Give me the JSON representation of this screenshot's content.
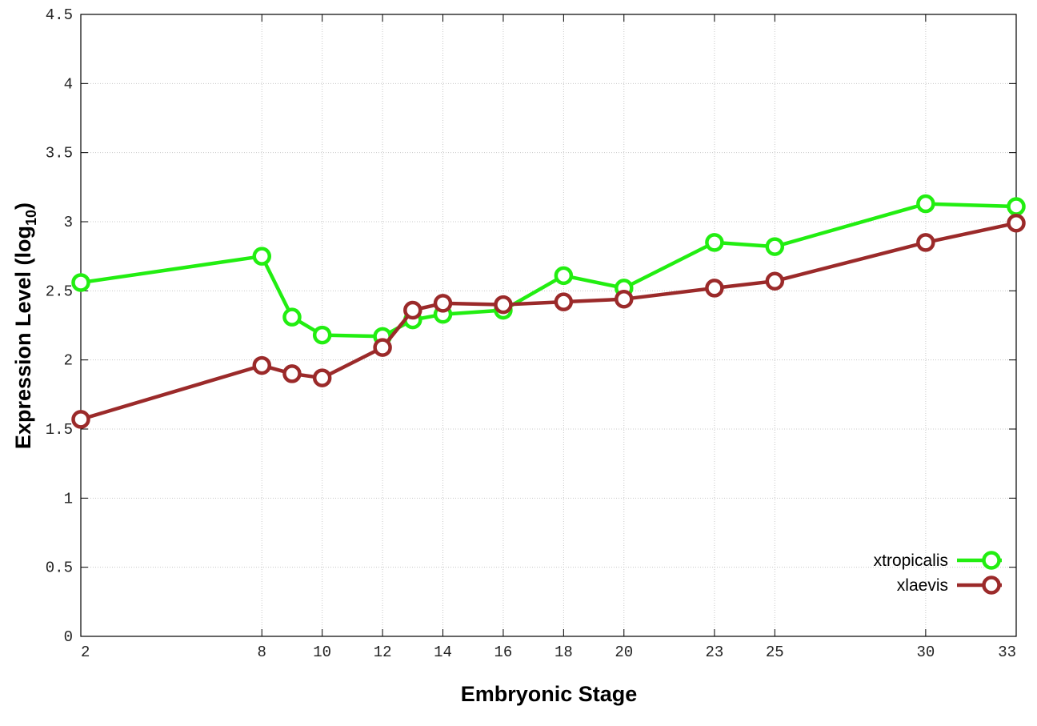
{
  "chart_data": {
    "type": "line",
    "title": "",
    "xlabel": "Embryonic Stage",
    "ylabel": "Expression Level (log",
    "ylabel_sub": "10",
    "ylabel_close": ")",
    "xlim": [
      2,
      33
    ],
    "ylim": [
      0,
      4.5
    ],
    "x_ticks": [
      2,
      8,
      10,
      12,
      14,
      16,
      18,
      20,
      23,
      25,
      30,
      33
    ],
    "x_tick_labels": [
      "2",
      "8",
      "10",
      "12",
      "14",
      "16",
      "18",
      "20",
      "23",
      "25",
      "30",
      "33"
    ],
    "y_ticks": [
      0,
      0.5,
      1,
      1.5,
      2,
      2.5,
      3,
      3.5,
      4,
      4.5
    ],
    "y_tick_labels": [
      "0",
      "0.5",
      "1",
      "1.5",
      "2",
      "2.5",
      "3",
      "3.5",
      "4",
      "4.5"
    ],
    "grid": true,
    "legend_position": "bottom-right",
    "x": [
      2,
      8,
      9,
      10,
      12,
      13,
      14,
      16,
      18,
      20,
      23,
      25,
      30,
      33
    ],
    "series": [
      {
        "name": "xtropicalis",
        "color": "#22ee11",
        "values": [
          2.56,
          2.75,
          2.31,
          2.18,
          2.17,
          2.29,
          2.33,
          2.36,
          2.61,
          2.52,
          2.85,
          2.82,
          3.13,
          3.11
        ]
      },
      {
        "name": "xlaevis",
        "color": "#9b2a2a",
        "values": [
          1.57,
          1.96,
          1.9,
          1.87,
          2.09,
          2.36,
          2.41,
          2.4,
          2.42,
          2.44,
          2.52,
          2.57,
          2.85,
          2.99
        ]
      }
    ]
  }
}
